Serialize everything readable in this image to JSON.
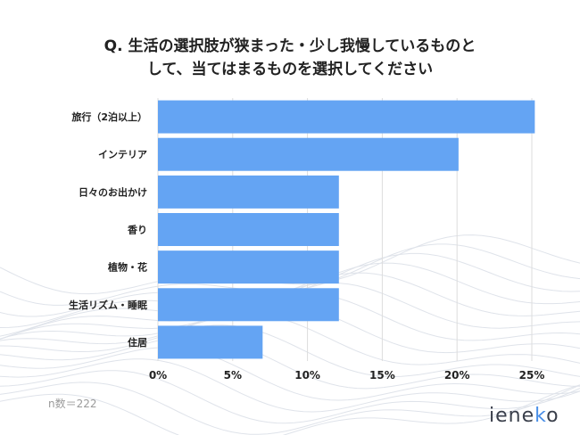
{
  "title_lines": [
    "Q. 生活の選択肢が狭まった・少し我慢しているものと",
    "して、当てはまるものを選択してください"
  ],
  "sample_size": "n数＝222",
  "logo": {
    "main": "iene",
    "accent": "k",
    "end": "o"
  },
  "colors": {
    "bar": "#64a4f3",
    "grid": "#dddddd",
    "text": "#222222",
    "wave": "#dfe3ea"
  },
  "chart_data": {
    "type": "bar",
    "orientation": "horizontal",
    "title": "Q. 生活の選択肢が狭まった・少し我慢しているものと して、当てはまるものを選択してください",
    "xlabel": "",
    "ylabel": "",
    "categories": [
      "旅行（2泊以上）",
      "インテリア",
      "日々のお出かけ",
      "香り",
      "植物・花",
      "生活リズム・睡眠",
      "住居"
    ],
    "values": [
      25.2,
      20.1,
      12.1,
      12.1,
      12.1,
      12.1,
      7.0
    ],
    "unit": "%",
    "xlim": [
      0,
      25
    ],
    "x_ticks": [
      "0%",
      "5%",
      "10%",
      "15%",
      "20%",
      "25%"
    ],
    "grid": true
  }
}
